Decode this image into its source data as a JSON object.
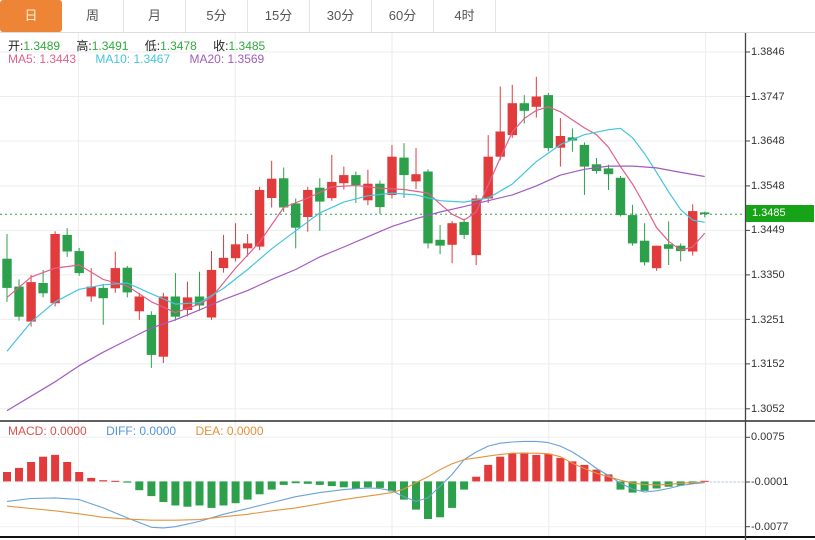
{
  "tab_bar": {
    "items": [
      {
        "label": "日",
        "selected": true
      },
      {
        "label": "周",
        "selected": false
      },
      {
        "label": "月",
        "selected": false
      },
      {
        "label": "5分",
        "selected": false
      },
      {
        "label": "15分",
        "selected": false
      },
      {
        "label": "30分",
        "selected": false
      },
      {
        "label": "60分",
        "selected": false
      },
      {
        "label": "4时",
        "selected": false
      }
    ]
  },
  "info": {
    "open_label": "开:",
    "open": "1.3489",
    "high_label": "高:",
    "high": "1.3491",
    "low_label": "低:",
    "low": "1.3478",
    "close_label": "收:",
    "close": "1.3485"
  },
  "ma_row": {
    "ma5_label": "MA5:",
    "ma5_value": "1.3443",
    "ma10_label": "MA10:",
    "ma10_value": "1.3467",
    "ma20_label": "MA20:",
    "ma20_value": "1.3569"
  },
  "price_axis": {
    "ticks": [
      "1.3846",
      "1.3747",
      "1.3648",
      "1.3548",
      "1.3449",
      "1.3350",
      "1.3251",
      "1.3152",
      "1.3052"
    ],
    "current_price_label": "1.3485"
  },
  "macd_row": {
    "macd_label": "MACD:",
    "macd_value": "0.0000",
    "diff_label": "DIFF:",
    "diff_value": "0.0000",
    "dea_label": "DEA:",
    "dea_value": "0.0000"
  },
  "macd_axis": {
    "ticks": [
      "0.0075",
      "-0.0001",
      "-0.0077"
    ]
  },
  "colors": {
    "accent_orange": "#ee8435",
    "up_red": "#e23b3b",
    "down_green": "#2ca04a",
    "value_green": "#2faa3c",
    "ma5_pink": "#e0608c",
    "ma10_cyan": "#45c5dd",
    "ma20_purple": "#a05cbf",
    "macd_red": "#d9534f",
    "diff_blue": "#5394d6",
    "dea_orange": "#e29138",
    "price_tag_green": "#17a317"
  },
  "chart_data": {
    "type": "candlestick",
    "panels": [
      "price",
      "macd"
    ],
    "up_color": "#e23b3b",
    "down_color": "#2ca04a",
    "price_range": {
      "top": 1.3846,
      "bottom": 1.3052
    },
    "current_price": 1.3485,
    "candles": [
      [
        1.3386,
        1.3441,
        1.329,
        1.3321
      ],
      [
        1.3324,
        1.334,
        1.3248,
        1.3257
      ],
      [
        1.3246,
        1.335,
        1.3235,
        1.3334
      ],
      [
        1.3332,
        1.3361,
        1.33,
        1.3309
      ],
      [
        1.3287,
        1.3447,
        1.328,
        1.3441
      ],
      [
        1.3439,
        1.3454,
        1.339,
        1.3402
      ],
      [
        1.3403,
        1.341,
        1.3348,
        1.3354
      ],
      [
        1.3302,
        1.3365,
        1.329,
        1.3324
      ],
      [
        1.3321,
        1.333,
        1.3239,
        1.3298
      ],
      [
        1.332,
        1.3402,
        1.331,
        1.3365
      ],
      [
        1.3366,
        1.337,
        1.33,
        1.3311
      ],
      [
        1.3269,
        1.331,
        1.325,
        1.3302
      ],
      [
        1.3261,
        1.3269,
        1.3143,
        1.3172
      ],
      [
        1.3168,
        1.331,
        1.3154,
        1.3302
      ],
      [
        1.3302,
        1.3354,
        1.3248,
        1.3257
      ],
      [
        1.3272,
        1.3335,
        1.3258,
        1.33
      ],
      [
        1.3302,
        1.3357,
        1.327,
        1.3282
      ],
      [
        1.3255,
        1.3403,
        1.325,
        1.3361
      ],
      [
        1.3365,
        1.3439,
        1.3355,
        1.3388
      ],
      [
        1.3387,
        1.3465,
        1.338,
        1.3418
      ],
      [
        1.3409,
        1.3441,
        1.3391,
        1.342
      ],
      [
        1.3413,
        1.3546,
        1.3405,
        1.3539
      ],
      [
        1.3521,
        1.3604,
        1.35,
        1.3564
      ],
      [
        1.3565,
        1.3589,
        1.349,
        1.35
      ],
      [
        1.3509,
        1.352,
        1.3409,
        1.3455
      ],
      [
        1.3479,
        1.3546,
        1.3446,
        1.3539
      ],
      [
        1.3544,
        1.3565,
        1.3448,
        1.3513
      ],
      [
        1.3521,
        1.3617,
        1.3515,
        1.3557
      ],
      [
        1.3554,
        1.3591,
        1.354,
        1.3572
      ],
      [
        1.3572,
        1.358,
        1.351,
        1.355
      ],
      [
        1.3516,
        1.3584,
        1.3505,
        1.3553
      ],
      [
        1.3553,
        1.356,
        1.3486,
        1.3501
      ],
      [
        1.3528,
        1.3639,
        1.352,
        1.3613
      ],
      [
        1.3611,
        1.3643,
        1.3521,
        1.3572
      ],
      [
        1.3558,
        1.3632,
        1.3541,
        1.3574
      ],
      [
        1.358,
        1.3585,
        1.3409,
        1.342
      ],
      [
        1.3428,
        1.3461,
        1.3396,
        1.3415
      ],
      [
        1.3417,
        1.347,
        1.3376,
        1.3465
      ],
      [
        1.3468,
        1.3475,
        1.343,
        1.3439
      ],
      [
        1.3394,
        1.3528,
        1.3372,
        1.352
      ],
      [
        1.352,
        1.3661,
        1.351,
        1.3613
      ],
      [
        1.3613,
        1.3769,
        1.3605,
        1.3669
      ],
      [
        1.3661,
        1.3773,
        1.3655,
        1.3732
      ],
      [
        1.3732,
        1.375,
        1.3687,
        1.3715
      ],
      [
        1.3724,
        1.3791,
        1.37,
        1.3747
      ],
      [
        1.375,
        1.3755,
        1.3625,
        1.3632
      ],
      [
        1.3633,
        1.3699,
        1.3591,
        1.3659
      ],
      [
        1.3656,
        1.3676,
        1.3624,
        1.3649
      ],
      [
        1.3639,
        1.3645,
        1.3528,
        1.3591
      ],
      [
        1.3596,
        1.361,
        1.3575,
        1.3581
      ],
      [
        1.3587,
        1.3595,
        1.3539,
        1.3574
      ],
      [
        1.3566,
        1.357,
        1.348,
        1.3483
      ],
      [
        1.3483,
        1.3506,
        1.3415,
        1.342
      ],
      [
        1.3426,
        1.3465,
        1.3371,
        1.3378
      ],
      [
        1.3365,
        1.3415,
        1.3359,
        1.3415
      ],
      [
        1.3418,
        1.3469,
        1.3372,
        1.3408
      ],
      [
        1.3415,
        1.342,
        1.338,
        1.3403
      ],
      [
        1.3402,
        1.3507,
        1.3393,
        1.3492
      ],
      [
        1.3489,
        1.3491,
        1.3478,
        1.3485
      ]
    ],
    "ma_series": [
      {
        "name": "MA5",
        "color": "#e0608c",
        "points": [
          [
            0,
            1.33
          ],
          [
            2,
            1.3345
          ],
          [
            4,
            1.3365
          ],
          [
            6,
            1.3372
          ],
          [
            8,
            1.334
          ],
          [
            10,
            1.3325
          ],
          [
            12,
            1.329
          ],
          [
            14,
            1.3266
          ],
          [
            16,
            1.3285
          ],
          [
            17,
            1.33
          ],
          [
            19,
            1.3365
          ],
          [
            21,
            1.3423
          ],
          [
            23,
            1.35
          ],
          [
            25,
            1.3521
          ],
          [
            27,
            1.3546
          ],
          [
            29,
            1.3549
          ],
          [
            31,
            1.3543
          ],
          [
            33,
            1.354
          ],
          [
            35,
            1.3532
          ],
          [
            36,
            1.3508
          ],
          [
            37,
            1.3485
          ],
          [
            38,
            1.3472
          ],
          [
            39,
            1.349
          ],
          [
            40,
            1.355
          ],
          [
            41,
            1.361
          ],
          [
            42,
            1.3668
          ],
          [
            43,
            1.3698
          ],
          [
            44,
            1.3716
          ],
          [
            45,
            1.3724
          ],
          [
            46,
            1.3713
          ],
          [
            47,
            1.3695
          ],
          [
            48,
            1.3677
          ],
          [
            49,
            1.3662
          ],
          [
            50,
            1.3634
          ],
          [
            51,
            1.3591
          ],
          [
            52,
            1.3552
          ],
          [
            53,
            1.3505
          ],
          [
            54,
            1.3455
          ],
          [
            55,
            1.3425
          ],
          [
            56,
            1.3405
          ],
          [
            57,
            1.3412
          ],
          [
            58,
            1.3443
          ]
        ]
      },
      {
        "name": "MA10",
        "color": "#45c5dd",
        "points": [
          [
            0,
            1.318
          ],
          [
            2,
            1.3245
          ],
          [
            4,
            1.329
          ],
          [
            6,
            1.3318
          ],
          [
            8,
            1.3328
          ],
          [
            10,
            1.3332
          ],
          [
            12,
            1.3308
          ],
          [
            14,
            1.3285
          ],
          [
            16,
            1.3288
          ],
          [
            18,
            1.332
          ],
          [
            20,
            1.3362
          ],
          [
            22,
            1.3408
          ],
          [
            24,
            1.3448
          ],
          [
            26,
            1.3488
          ],
          [
            28,
            1.3512
          ],
          [
            30,
            1.3526
          ],
          [
            32,
            1.3532
          ],
          [
            34,
            1.3528
          ],
          [
            36,
            1.3515
          ],
          [
            38,
            1.3512
          ],
          [
            40,
            1.3521
          ],
          [
            42,
            1.3552
          ],
          [
            44,
            1.3602
          ],
          [
            46,
            1.364
          ],
          [
            48,
            1.3662
          ],
          [
            50,
            1.3673
          ],
          [
            51,
            1.3676
          ],
          [
            52,
            1.3655
          ],
          [
            53,
            1.362
          ],
          [
            54,
            1.3578
          ],
          [
            55,
            1.3535
          ],
          [
            56,
            1.3495
          ],
          [
            57,
            1.3472
          ],
          [
            58,
            1.3467
          ]
        ]
      },
      {
        "name": "MA20",
        "color": "#a05cbf",
        "points": [
          [
            0,
            1.3048
          ],
          [
            2,
            1.308
          ],
          [
            4,
            1.3112
          ],
          [
            6,
            1.3148
          ],
          [
            8,
            1.3178
          ],
          [
            10,
            1.3205
          ],
          [
            12,
            1.3232
          ],
          [
            14,
            1.325
          ],
          [
            16,
            1.3272
          ],
          [
            18,
            1.3295
          ],
          [
            20,
            1.3315
          ],
          [
            22,
            1.334
          ],
          [
            24,
            1.3362
          ],
          [
            26,
            1.339
          ],
          [
            28,
            1.3412
          ],
          [
            30,
            1.3435
          ],
          [
            32,
            1.3458
          ],
          [
            34,
            1.3475
          ],
          [
            36,
            1.349
          ],
          [
            38,
            1.3502
          ],
          [
            40,
            1.3515
          ],
          [
            42,
            1.3528
          ],
          [
            44,
            1.3548
          ],
          [
            46,
            1.3572
          ],
          [
            48,
            1.3585
          ],
          [
            50,
            1.3592
          ],
          [
            52,
            1.3592
          ],
          [
            54,
            1.3588
          ],
          [
            56,
            1.3578
          ],
          [
            58,
            1.3569
          ]
        ]
      }
    ],
    "macd_range": {
      "top": 0.0075,
      "mid": -0.0001,
      "bottom": -0.0077
    },
    "macd_hist": [
      0.0016,
      0.0023,
      0.0033,
      0.0042,
      0.0045,
      0.0033,
      0.0016,
      0.0006,
      0.0002,
      0.0001,
      -0.0002,
      -0.0015,
      -0.0025,
      -0.0035,
      -0.0041,
      -0.0043,
      -0.0041,
      -0.0045,
      -0.0041,
      -0.0037,
      -0.0031,
      -0.0022,
      -0.0014,
      -0.0006,
      -0.0003,
      -0.0004,
      -0.0006,
      -0.0008,
      -0.001,
      -0.0012,
      -0.001,
      -0.0011,
      -0.0017,
      -0.0031,
      -0.0048,
      -0.0064,
      -0.0061,
      -0.0045,
      -0.0014,
      0.0008,
      0.0028,
      0.0042,
      0.0048,
      0.0049,
      0.0045,
      0.0047,
      0.004,
      0.0034,
      0.0028,
      0.002,
      0.0012,
      -0.0014,
      -0.0019,
      -0.0016,
      -0.0012,
      -0.0009,
      -0.0007,
      -0.0004,
      0.0001
    ],
    "macd_lines": [
      {
        "name": "DIFF",
        "color": "#6aa1d8",
        "points": [
          [
            0,
            -0.0034
          ],
          [
            2,
            -0.0029
          ],
          [
            4,
            -0.0028
          ],
          [
            6,
            -0.0031
          ],
          [
            8,
            -0.0045
          ],
          [
            10,
            -0.0062
          ],
          [
            12,
            -0.0078
          ],
          [
            13,
            -0.0079
          ],
          [
            14,
            -0.0077
          ],
          [
            16,
            -0.0068
          ],
          [
            18,
            -0.0056
          ],
          [
            20,
            -0.0046
          ],
          [
            22,
            -0.0036
          ],
          [
            24,
            -0.0026
          ],
          [
            26,
            -0.0019
          ],
          [
            28,
            -0.0014
          ],
          [
            30,
            -0.0011
          ],
          [
            31,
            -0.0012
          ],
          [
            32,
            -0.0016
          ],
          [
            33,
            -0.0026
          ],
          [
            34,
            -0.0034
          ],
          [
            35,
            -0.0028
          ],
          [
            36,
            -0.0008
          ],
          [
            37,
            0.0012
          ],
          [
            38,
            0.0037
          ],
          [
            39,
            0.005
          ],
          [
            40,
            0.006
          ],
          [
            41,
            0.0065
          ],
          [
            42,
            0.0067
          ],
          [
            43,
            0.0068
          ],
          [
            44,
            0.0068
          ],
          [
            45,
            0.0066
          ],
          [
            46,
            0.006
          ],
          [
            47,
            0.005
          ],
          [
            48,
            0.0037
          ],
          [
            49,
            0.0022
          ],
          [
            50,
            0.001
          ],
          [
            51,
            -0.0003
          ],
          [
            52,
            -0.0013
          ],
          [
            53,
            -0.0018
          ],
          [
            54,
            -0.0016
          ],
          [
            55,
            -0.0012
          ],
          [
            56,
            -0.0007
          ],
          [
            57,
            -0.0004
          ],
          [
            58,
            -0.0002
          ]
        ]
      },
      {
        "name": "DEA",
        "color": "#e2953f",
        "points": [
          [
            0,
            -0.0042
          ],
          [
            2,
            -0.0046
          ],
          [
            4,
            -0.005
          ],
          [
            6,
            -0.0055
          ],
          [
            8,
            -0.0061
          ],
          [
            10,
            -0.0064
          ],
          [
            12,
            -0.0066
          ],
          [
            14,
            -0.0066
          ],
          [
            16,
            -0.0065
          ],
          [
            18,
            -0.006
          ],
          [
            20,
            -0.0056
          ],
          [
            22,
            -0.005
          ],
          [
            24,
            -0.0045
          ],
          [
            26,
            -0.0038
          ],
          [
            28,
            -0.0031
          ],
          [
            30,
            -0.0025
          ],
          [
            31,
            -0.0022
          ],
          [
            32,
            -0.0019
          ],
          [
            33,
            -0.0013
          ],
          [
            34,
            -0.0002
          ],
          [
            35,
            0.0008
          ],
          [
            36,
            0.002
          ],
          [
            37,
            0.003
          ],
          [
            38,
            0.0037
          ],
          [
            39,
            0.004
          ],
          [
            40,
            0.0043
          ],
          [
            41,
            0.0046
          ],
          [
            42,
            0.0048
          ],
          [
            43,
            0.0048
          ],
          [
            44,
            0.0048
          ],
          [
            45,
            0.0047
          ],
          [
            46,
            0.0042
          ],
          [
            47,
            0.0031
          ],
          [
            48,
            0.0022
          ],
          [
            49,
            0.0014
          ],
          [
            50,
            0.0008
          ],
          [
            51,
            0.0002
          ],
          [
            52,
            -0.0003
          ],
          [
            53,
            -0.0005
          ],
          [
            54,
            -0.0006
          ],
          [
            55,
            -0.0005
          ],
          [
            56,
            -0.0003
          ],
          [
            57,
            -0.0002
          ],
          [
            58,
            -0.0001
          ]
        ]
      }
    ]
  }
}
